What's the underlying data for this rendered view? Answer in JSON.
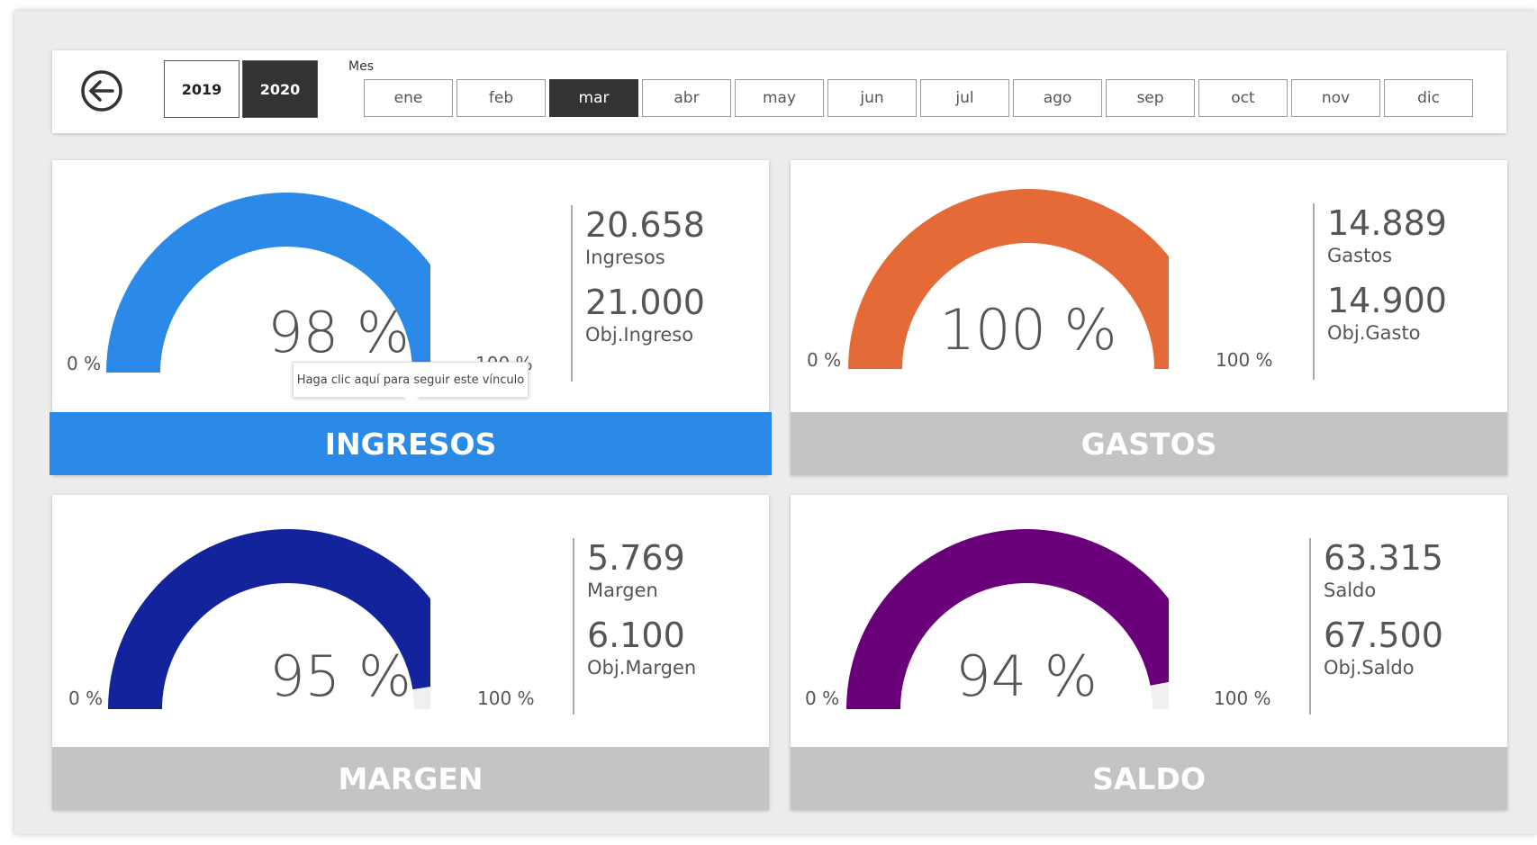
{
  "filters": {
    "years": [
      {
        "label": "2019",
        "selected": false
      },
      {
        "label": "2020",
        "selected": true
      }
    ],
    "month_title": "Mes",
    "months": [
      {
        "label": "ene",
        "selected": false
      },
      {
        "label": "feb",
        "selected": false
      },
      {
        "label": "mar",
        "selected": true
      },
      {
        "label": "abr",
        "selected": false
      },
      {
        "label": "may",
        "selected": false
      },
      {
        "label": "jun",
        "selected": false
      },
      {
        "label": "jul",
        "selected": false
      },
      {
        "label": "ago",
        "selected": false
      },
      {
        "label": "sep",
        "selected": false
      },
      {
        "label": "oct",
        "selected": false
      },
      {
        "label": "nov",
        "selected": false
      },
      {
        "label": "dic",
        "selected": false
      }
    ]
  },
  "back_icon": "back-arrow-icon",
  "tooltip": "Haga clic aquí para seguir este vínculo",
  "cards": [
    {
      "key": "ingresos",
      "percent_text": "98 %",
      "fill_fraction": 0.98,
      "gauge_color": "#2b8ae8",
      "min_label": "0 %",
      "max_label": "100 %",
      "value": "20.658",
      "value_label": "Ingresos",
      "target": "21.000",
      "target_label": "Obj.Ingreso",
      "banner": "INGRESOS",
      "banner_color": "#2b8ae8"
    },
    {
      "key": "gastos",
      "percent_text": "100 %",
      "fill_fraction": 1.0,
      "gauge_color": "#e46a37",
      "min_label": "0 %",
      "max_label": "100 %",
      "value": "14.889",
      "value_label": "Gastos",
      "target": "14.900",
      "target_label": "Obj.Gasto",
      "banner": "GASTOS",
      "banner_color": "#c4c4c4"
    },
    {
      "key": "margen",
      "percent_text": "95 %",
      "fill_fraction": 0.95,
      "gauge_color": "#13239c",
      "min_label": "0 %",
      "max_label": "100 %",
      "value": "5.769",
      "value_label": "Margen",
      "target": "6.100",
      "target_label": "Obj.Margen",
      "banner": "MARGEN",
      "banner_color": "#c4c4c4"
    },
    {
      "key": "saldo",
      "percent_text": "94 %",
      "fill_fraction": 0.94,
      "gauge_color": "#6a0079",
      "min_label": "0 %",
      "max_label": "100 %",
      "value": "63.315",
      "value_label": "Saldo",
      "target": "67.500",
      "target_label": "Obj.Saldo",
      "banner": "SALDO",
      "banner_color": "#c4c4c4"
    }
  ],
  "gauge_track_color": "#f0f0f0"
}
